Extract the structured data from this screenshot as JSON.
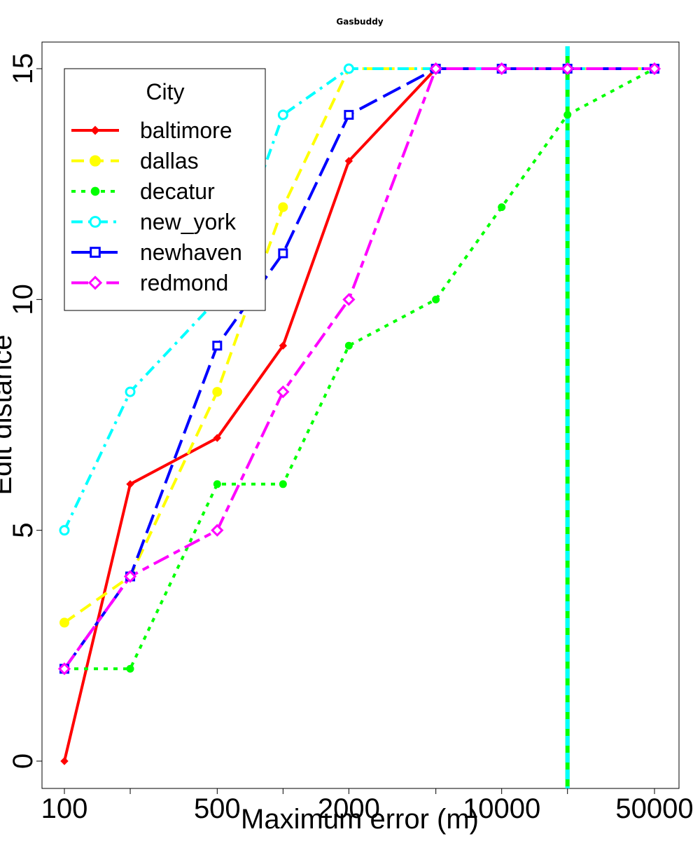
{
  "chart_data": {
    "type": "line",
    "title": "Gasbuddy",
    "xlabel": "Maximum error (m)",
    "ylabel": "Edit distance",
    "x_scale": "log",
    "x": [
      100,
      200,
      500,
      1000,
      2000,
      5000,
      10000,
      20000,
      50000
    ],
    "xticks": [
      100,
      200,
      500,
      1000,
      2000,
      5000,
      10000,
      20000,
      50000
    ],
    "xtick_labels": [
      "100",
      "",
      "500",
      "",
      "2000",
      "",
      "10000",
      "",
      "50000"
    ],
    "xlim": [
      90,
      60000
    ],
    "ylim": [
      -0.6,
      15.6
    ],
    "yticks": [
      0,
      5,
      10,
      15
    ],
    "ytick_labels": [
      "0",
      "5",
      "10",
      "15"
    ],
    "reference_line_x": 20000,
    "legend": {
      "title": "City",
      "position": "top-left"
    },
    "series": [
      {
        "name": "baltimore",
        "values": [
          0,
          6,
          7,
          9,
          13,
          15,
          15,
          15,
          15
        ],
        "color": "#ff0000",
        "dash": "solid",
        "marker": "diamond-filled"
      },
      {
        "name": "dallas",
        "values": [
          3,
          4,
          8,
          12,
          15,
          15,
          15,
          15,
          15
        ],
        "color": "#ffff00",
        "dash": "dashed",
        "marker": "circle-filled"
      },
      {
        "name": "decatur",
        "values": [
          2,
          2,
          6,
          6,
          9,
          10,
          12,
          14,
          15
        ],
        "color": "#00ff00",
        "dash": "dotted",
        "marker": "circle-filled-small"
      },
      {
        "name": "new_york",
        "values": [
          5,
          8,
          10,
          14,
          15,
          15,
          15,
          15,
          15
        ],
        "color": "#00ffff",
        "dash": "dashdot",
        "marker": "circle-open"
      },
      {
        "name": "newhaven",
        "values": [
          2,
          4,
          9,
          11,
          14,
          15,
          15,
          15,
          15
        ],
        "color": "#0000ff",
        "dash": "longdash",
        "marker": "square-open"
      },
      {
        "name": "redmond",
        "values": [
          2,
          4,
          5,
          8,
          10,
          15,
          15,
          15,
          15
        ],
        "color": "#ff00ff",
        "dash": "twodash",
        "marker": "diamond-open"
      }
    ]
  }
}
